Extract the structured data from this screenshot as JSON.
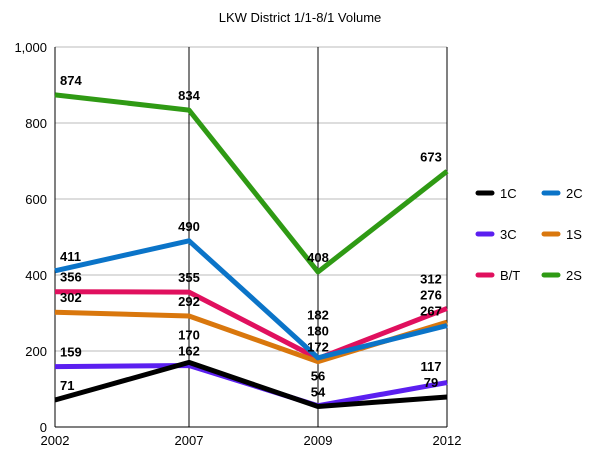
{
  "chart_data": {
    "type": "line",
    "title": "LKW District 1/1-8/1 Volume",
    "xlabel": "",
    "ylabel": "",
    "categories": [
      "2002",
      "2007",
      "2009",
      "2012"
    ],
    "ylim": [
      0,
      1000
    ],
    "yticks": [
      "0",
      "200",
      "400",
      "600",
      "800",
      "1,000"
    ],
    "ytick_values": [
      0,
      200,
      400,
      600,
      800,
      1000
    ],
    "grid": true,
    "legend_position": "right",
    "series": [
      {
        "name": "1C",
        "color": "#000000",
        "values": [
          71,
          170,
          54,
          79
        ]
      },
      {
        "name": "2C",
        "color": "#0b74c8",
        "values": [
          411,
          490,
          182,
          267
        ]
      },
      {
        "name": "3C",
        "color": "#5b1ff0",
        "values": [
          159,
          162,
          56,
          117
        ]
      },
      {
        "name": "1S",
        "color": "#d9770d",
        "values": [
          302,
          292,
          172,
          276
        ]
      },
      {
        "name": "B/T",
        "color": "#e0105e",
        "values": [
          356,
          355,
          180,
          312
        ]
      },
      {
        "name": "2S",
        "color": "#2f9a14",
        "values": [
          874,
          834,
          408,
          673
        ]
      }
    ]
  }
}
